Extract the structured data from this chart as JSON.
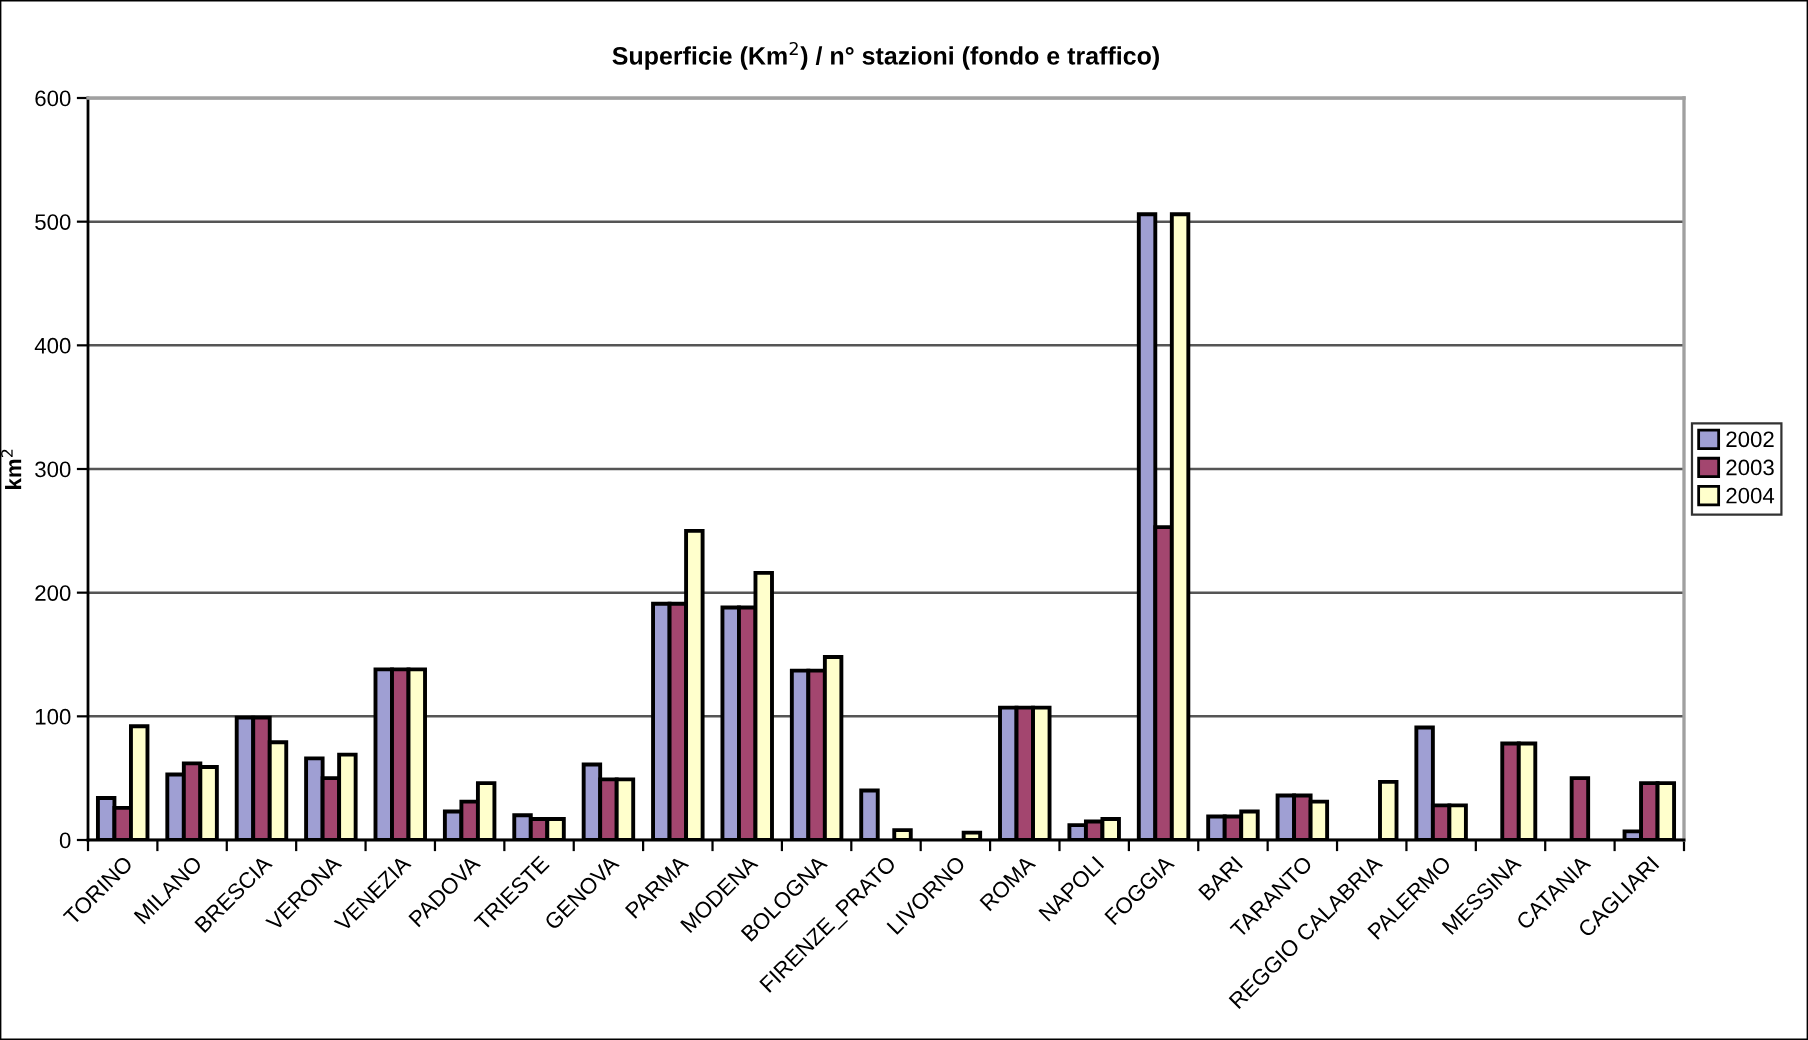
{
  "chart_data": {
    "type": "bar",
    "title": "Superficie (Km$^{2}$) / n° stazioni (fondo e traffico)",
    "ylabel": "km$^{2}$",
    "categories": [
      "TORINO",
      "MILANO",
      "BRESCIA",
      "VERONA",
      "VENEZIA",
      "PADOVA",
      "TRIESTE",
      "GENOVA",
      "PARMA",
      "MODENA",
      "BOLOGNA",
      "FIRENZE_PRATO",
      "LIVORNO",
      "ROMA",
      "NAPOLI",
      "FOGGIA",
      "BARI",
      "TARANTO",
      "REGGIO CALABRIA",
      "PALERMO",
      "MESSINA",
      "CATANIA",
      "CAGLIARI"
    ],
    "series": [
      {
        "name": "2002",
        "color": "#9f9fd3",
        "values": [
          34,
          53,
          99,
          66,
          138,
          23,
          20,
          61,
          191,
          188,
          137,
          40,
          null,
          107,
          12,
          506,
          19,
          36,
          null,
          91,
          null,
          null,
          7
        ]
      },
      {
        "name": "2003",
        "color": "#a3466f",
        "values": [
          26,
          62,
          99,
          50,
          138,
          31,
          17,
          49,
          191,
          188,
          137,
          null,
          null,
          107,
          15,
          253,
          19,
          36,
          null,
          28,
          78,
          50,
          46
        ]
      },
      {
        "name": "2004",
        "color": "#ffffcc",
        "values": [
          92,
          59,
          79,
          69,
          138,
          46,
          17,
          49,
          250,
          216,
          148,
          8,
          6,
          107,
          17,
          506,
          23,
          31,
          47,
          28,
          78,
          null,
          46
        ]
      }
    ],
    "ylim": [
      0,
      600
    ],
    "yticks": [
      0,
      100,
      200,
      300,
      400,
      500,
      600
    ],
    "grid": "y",
    "legend": "right"
  }
}
